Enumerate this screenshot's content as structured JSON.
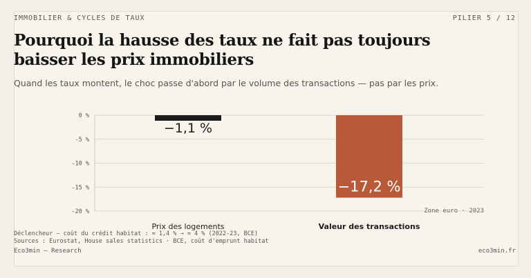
{
  "header": {
    "section": "IMMOBILIER & CYCLES DE TAUX",
    "pager": "PILIER 5 / 12"
  },
  "title": "Pourquoi la hausse des taux ne fait pas toujours baisser les prix immobiliers",
  "subtitle": "Quand les taux montent, le choc passe d'abord par le volume des transactions — pas par les prix.",
  "chart_data": {
    "type": "bar",
    "categories": [
      "Prix des logements",
      "Valeur des transactions"
    ],
    "values": [
      -1.1,
      -17.2
    ],
    "value_labels": [
      "−1,1 %",
      "−17,2 %"
    ],
    "y_ticks": [
      "0 %",
      "-5 %",
      "-10 %",
      "-15 %",
      "-20 %"
    ],
    "tick_values": [
      0,
      -5,
      -10,
      -15,
      -20
    ],
    "ylim": [
      -20,
      0
    ],
    "annotation": "Zone euro · 2023",
    "colors": [
      "#1c1c1c",
      "#b85a3a"
    ],
    "grid": true
  },
  "footnotes": {
    "line1": "Déclencheur — coût du crédit habitat : ≈ 1,4 % → ≈ 4 % (2022-23, BCE)",
    "line2": "Sources : Eurostat, House sales statistics · BCE, coût d'emprunt habitat"
  },
  "footer": {
    "left": "Eco3min — Research",
    "right": "eco3min.fr"
  }
}
